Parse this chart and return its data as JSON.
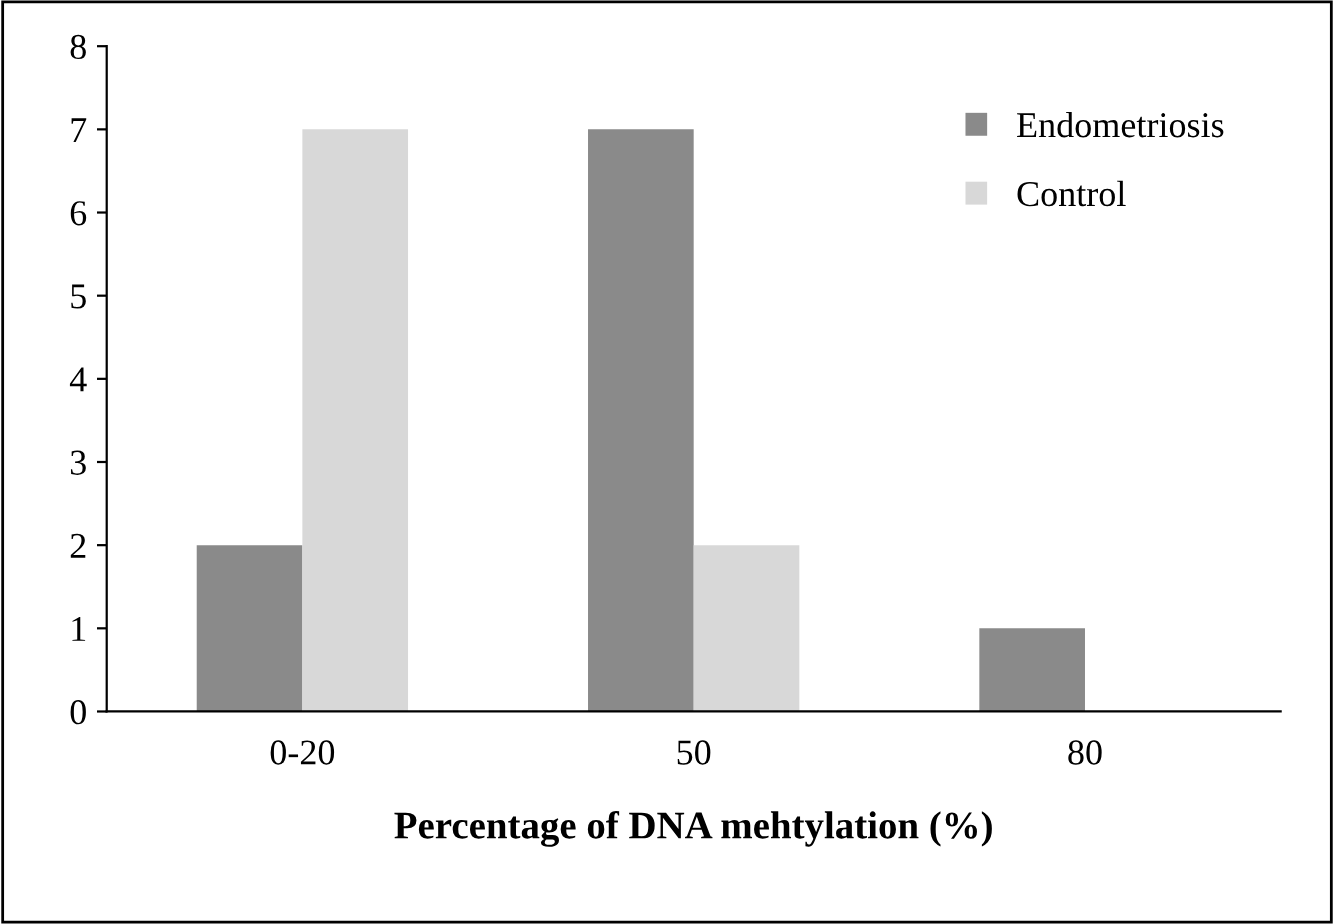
{
  "chart_data": {
    "type": "bar",
    "xlabel": "Percentage of DNA mehtylation (%)",
    "categories": [
      "0-20",
      "50",
      "80"
    ],
    "series": [
      {
        "name": "Endometriosis",
        "color": "#8a8a8a",
        "values": [
          2,
          7,
          1
        ]
      },
      {
        "name": "Control",
        "color": "#d8d8d8",
        "values": [
          7,
          2,
          0
        ]
      }
    ],
    "ylim": [
      0,
      8
    ],
    "yticks": [
      0,
      1,
      2,
      3,
      4,
      5,
      6,
      7,
      8
    ],
    "grid": false,
    "legend": "top right"
  }
}
